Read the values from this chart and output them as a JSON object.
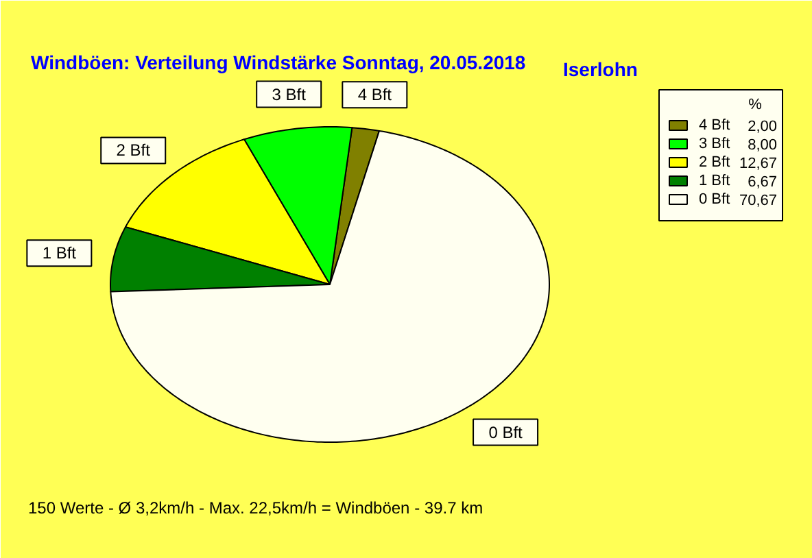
{
  "chart_data": {
    "type": "pie",
    "title": "Windböen: Verteilung Windstärke  Sonntag, 20.05.2018",
    "subtitle": "Iserlohn",
    "categories": [
      "4 Bft",
      "3 Bft",
      "2 Bft",
      "1 Bft",
      "0 Bft"
    ],
    "values": [
      2.0,
      8.0,
      12.67,
      6.67,
      70.67
    ],
    "value_labels": [
      "2,00",
      "8,00",
      "12,67",
      "6,67",
      "70,67"
    ],
    "colors": [
      "#808000",
      "#00ff00",
      "#ffff00",
      "#008000",
      "#fffff0"
    ],
    "legend": "top right",
    "legend_title": "%",
    "annotations": [
      "150 Werte   -   Ø 3,2km/h  -  Max. 22,5km/h = Windböen   -   39.7 km"
    ]
  }
}
